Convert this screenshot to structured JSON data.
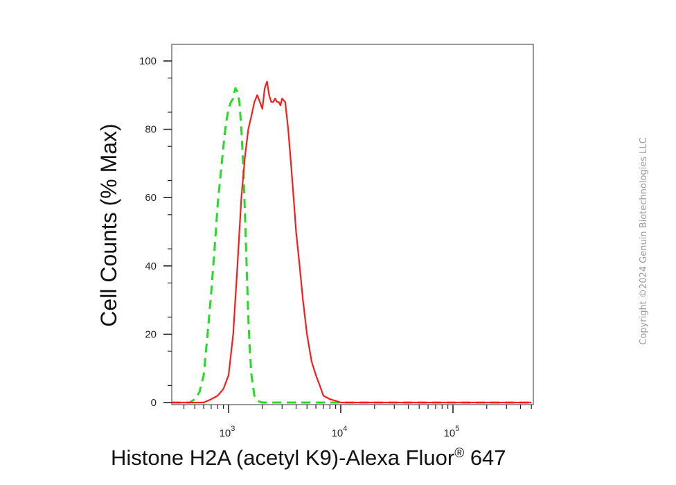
{
  "copyright": "Copyright ©2024 Genuin Biotechnologies LLC",
  "chart_data": {
    "type": "line",
    "title": "",
    "xlabel": {
      "main": "Histone H2A (acetyl K9)-Alexa Fluor",
      "mark": "®",
      "suffix": " 647"
    },
    "ylabel": "Cell Counts (% Max)",
    "x_scale": "log",
    "xlim": [
      300,
      500000
    ],
    "ylim": [
      0,
      100
    ],
    "y_ticks": [
      0,
      20,
      40,
      60,
      80,
      100
    ],
    "x_ticks": [
      {
        "value": 1000,
        "base": "10",
        "exp": "3"
      },
      {
        "value": 10000,
        "base": "10",
        "exp": "4"
      },
      {
        "value": 100000,
        "base": "10",
        "exp": "5"
      }
    ],
    "grid": false,
    "series": [
      {
        "style": "dashed",
        "color": "#22dd22",
        "x": [
          300,
          450,
          500,
          550,
          600,
          650,
          700,
          750,
          800,
          850,
          900,
          950,
          1000,
          1050,
          1100,
          1150,
          1200,
          1250,
          1300,
          1350,
          1400,
          1450,
          1500,
          1550,
          1600,
          1700,
          1800,
          2000,
          2500,
          5000,
          8000,
          500000
        ],
        "y": [
          0,
          0,
          1,
          3,
          8,
          20,
          32,
          45,
          58,
          67,
          75,
          82,
          86,
          88,
          89,
          92,
          91,
          88,
          80,
          70,
          55,
          40,
          25,
          15,
          8,
          2,
          0.5,
          0,
          0,
          0,
          0,
          0
        ]
      },
      {
        "style": "solid",
        "color": "#ff1a1a",
        "x": [
          300,
          600,
          700,
          800,
          900,
          1000,
          1100,
          1200,
          1300,
          1400,
          1500,
          1600,
          1700,
          1800,
          1900,
          2000,
          2100,
          2200,
          2300,
          2400,
          2500,
          2600,
          2700,
          2800,
          2900,
          3000,
          3200,
          3400,
          3600,
          3800,
          4000,
          4300,
          4600,
          5000,
          5500,
          6000,
          6500,
          7000,
          8000,
          9000,
          10000,
          12000,
          15000,
          20000,
          500000
        ],
        "y": [
          0,
          0,
          1,
          2,
          4,
          8,
          20,
          40,
          60,
          72,
          80,
          84,
          88,
          90,
          88,
          86,
          92,
          94,
          90,
          88,
          88,
          89,
          88,
          88,
          87,
          89,
          88,
          80,
          70,
          60,
          50,
          40,
          30,
          20,
          12,
          8,
          5,
          2,
          1,
          0.5,
          0,
          0,
          0,
          0,
          0
        ]
      }
    ]
  }
}
